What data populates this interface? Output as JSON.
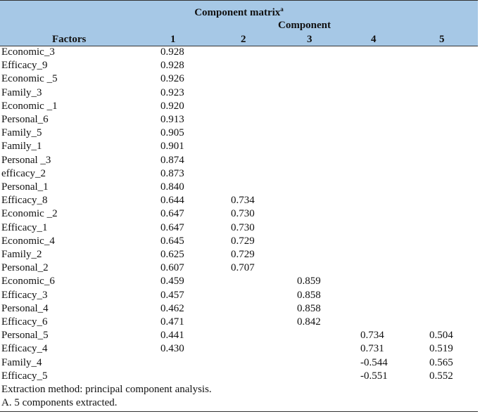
{
  "table": {
    "title": "Component matrix",
    "title_superscript": "a",
    "component_label": "Component",
    "headers": [
      "Factors",
      "1",
      "2",
      "3",
      "4",
      "5"
    ],
    "rows": [
      [
        "Economic_3",
        "0.928",
        "",
        "",
        "",
        ""
      ],
      [
        "Efficacy_9",
        "0.928",
        "",
        "",
        "",
        ""
      ],
      [
        "Economic _5",
        "0.926",
        "",
        "",
        "",
        ""
      ],
      [
        "Family_3",
        "0.923",
        "",
        "",
        "",
        ""
      ],
      [
        "Economic _1",
        "0.920",
        "",
        "",
        "",
        ""
      ],
      [
        "Personal_6",
        "0.913",
        "",
        "",
        "",
        ""
      ],
      [
        "Family_5",
        "0.905",
        "",
        "",
        "",
        ""
      ],
      [
        "Family_1",
        "0.901",
        "",
        "",
        "",
        ""
      ],
      [
        "Personal _3",
        "0.874",
        "",
        "",
        "",
        ""
      ],
      [
        "efficacy_2",
        "0.873",
        "",
        "",
        "",
        ""
      ],
      [
        "Personal_1",
        "0.840",
        "",
        "",
        "",
        ""
      ],
      [
        "Efficacy_8",
        "0.644",
        "0.734",
        "",
        "",
        ""
      ],
      [
        "Economic _2",
        "0.647",
        "0.730",
        "",
        "",
        ""
      ],
      [
        "Efficacy_1",
        "0.647",
        "0.730",
        "",
        "",
        ""
      ],
      [
        "Economic_4",
        "0.645",
        "0.729",
        "",
        "",
        ""
      ],
      [
        "Family_2",
        "0.625",
        "0.729",
        "",
        "",
        ""
      ],
      [
        "Personal_2",
        "0.607",
        "0.707",
        "",
        "",
        ""
      ],
      [
        "Economic_6",
        "0.459",
        "",
        "0.859",
        "",
        ""
      ],
      [
        "Efficacy_3",
        "0.457",
        "",
        "0.858",
        "",
        ""
      ],
      [
        "Personal_4",
        "0.462",
        "",
        "0.858",
        "",
        ""
      ],
      [
        "Efficacy_6",
        "0.471",
        "",
        "0.842",
        "",
        ""
      ],
      [
        "Personal_5",
        "0.441",
        "",
        "",
        "0.734",
        "0.504"
      ],
      [
        "Efficacy_4",
        "0.430",
        "",
        "",
        "0.731",
        "0.519"
      ],
      [
        "Family_4",
        "",
        "",
        "",
        "-0.544",
        "0.565"
      ],
      [
        "Efficacy_5",
        "",
        "",
        "",
        "-0.551",
        "0.552"
      ]
    ],
    "notes": [
      "Extraction method: principal component analysis.",
      "A. 5 components extracted."
    ]
  }
}
